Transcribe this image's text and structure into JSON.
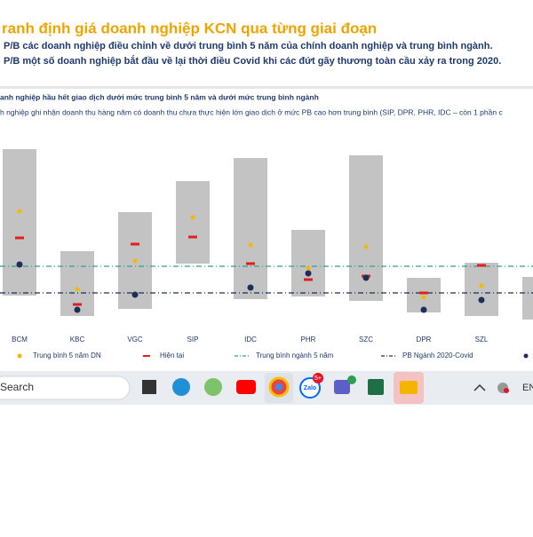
{
  "header": {
    "title": "ranh định giá doanh nghiệp KCN qua từng giai đoạn",
    "bullets": [
      "P/B các doanh nghiệp điều chỉnh về dưới trung bình 5 năm của chính doanh nghiệp và trung bình ngành.",
      "P/B một số doanh nghiệp bắt đầu về lại thời điều Covid khi các đứt gãy thương toàn cầu xảy ra trong 2020."
    ]
  },
  "chart_data": {
    "type": "range",
    "title": "anh nghiệp hầu hết giao dịch dưới mức trung bình 5 năm và dưới mức trung bình ngành",
    "subtitle": "h nghiệp ghi nhận doanh thu hàng năm có doanh thu chưa thực hiện lớn giao dịch ở mức PB cao hơn trung bình (SIP, DPR, PHR, IDC – còn 1 phần c",
    "categories": [
      "BCM",
      "KBC",
      "VGC",
      "SIP",
      "IDC",
      "PHR",
      "SZC",
      "DPR",
      "SZL",
      null
    ],
    "high": [
      21.2,
      9.7,
      14.1,
      17.6,
      20.2,
      12.1,
      20.5,
      6.7,
      8.4,
      6.8
    ],
    "low": [
      4.7,
      2.4,
      3.2,
      8.3,
      4.3,
      4.6,
      4.1,
      2.8,
      2.4,
      2.0
    ],
    "range_color": "#c3c3c3",
    "series": [
      {
        "name": "Trung bình 5 năm DN",
        "color": "#f5b800",
        "marker": "dot",
        "values": [
          14.2,
          5.4,
          8.6,
          13.5,
          10.4,
          7.8,
          10.2,
          4.5,
          5.8,
          null
        ]
      },
      {
        "name": "Hiện tại",
        "color": "#e0201b",
        "marker": "dash",
        "values": [
          11.2,
          3.7,
          10.5,
          11.3,
          8.3,
          6.5,
          6.9,
          5.0,
          8.1,
          null
        ]
      },
      {
        "name": null,
        "color": "#1c2f5a",
        "marker": "big-dot",
        "values": [
          8.2,
          3.1,
          4.8,
          null,
          5.6,
          7.2,
          6.7,
          3.1,
          4.2,
          null
        ]
      }
    ],
    "reference_lines": [
      {
        "name": "Trung bình ngành 5 năm",
        "color": "#2aa198",
        "value": 8.0
      },
      {
        "name": "PB Ngành 2020-Covid",
        "color": "#1c2f5a",
        "value": 5.0
      }
    ],
    "ylim": [
      0,
      22
    ]
  },
  "taskbar": {
    "search": "Search",
    "badge": "5+",
    "app": "Zalo",
    "language": "EN"
  }
}
